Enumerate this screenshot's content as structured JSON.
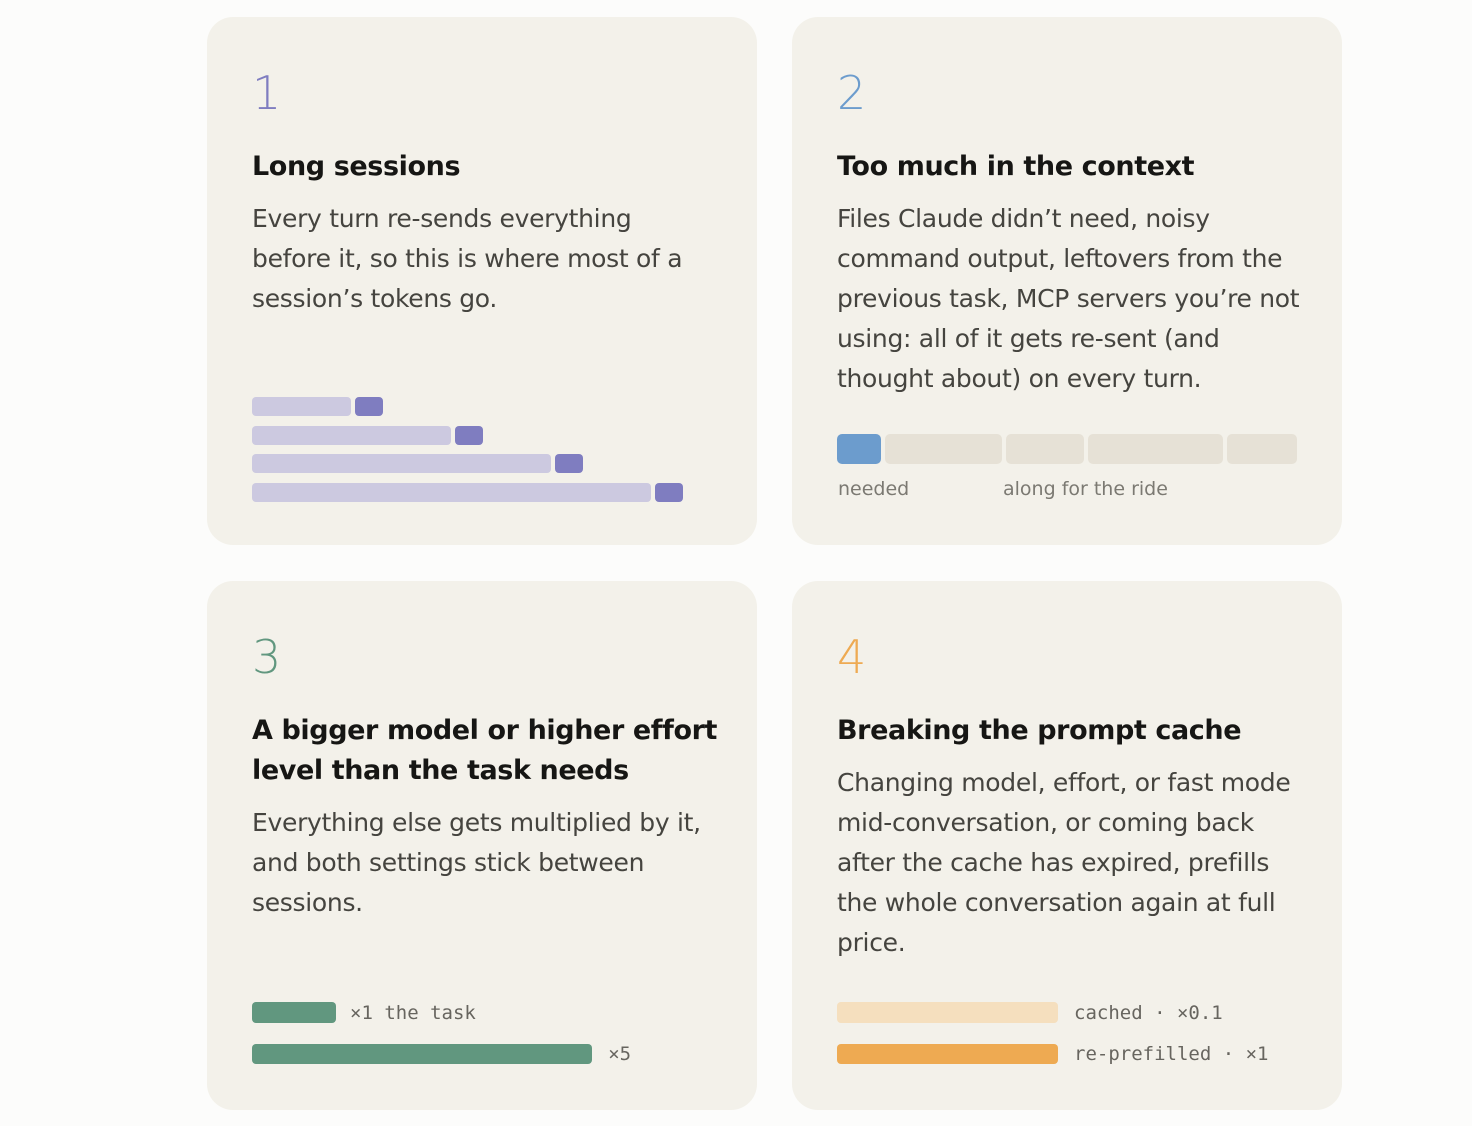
{
  "colors": {
    "card_bg": "#f3f1ea",
    "purple": "#7f7dc0",
    "purple_light": "#ccc9e0",
    "blue": "#6c9ccd",
    "beige": "#e6e1d6",
    "green": "#61977f",
    "orange": "#eeaa52",
    "orange_light": "#f5dfbe"
  },
  "cards": [
    {
      "number": "1",
      "title": "Long sessions",
      "description": "Every turn re-sends everything before it, so this is where most of a session’s tokens go.",
      "turns": [
        {
          "resent": 1,
          "new": 1
        },
        {
          "resent": 2,
          "new": 1
        },
        {
          "resent": 3,
          "new": 1
        },
        {
          "resent": 4,
          "new": 1
        }
      ]
    },
    {
      "number": "2",
      "title": "Too much in the context",
      "description": "Files Claude didn’t need, noisy command output, leftovers from the previous task, MCP servers you’re not using: all of it gets re-sent (and thought about) on every turn.",
      "segments": [
        {
          "role": "needed",
          "size": 1
        },
        {
          "role": "extra",
          "size": 2.7
        },
        {
          "role": "extra",
          "size": 1.8
        },
        {
          "role": "extra",
          "size": 3.1
        },
        {
          "role": "extra",
          "size": 1.6
        }
      ],
      "label_needed": "needed",
      "label_extra": "along for the ride"
    },
    {
      "number": "3",
      "title": "A bigger model or higher effort level than the task needs",
      "description": "Everything else gets multiplied by it, and both settings stick between sessions.",
      "bars": [
        {
          "multiplier": 1,
          "label": "×1 the task"
        },
        {
          "multiplier": 5,
          "label": "×5"
        }
      ]
    },
    {
      "number": "4",
      "title": "Breaking the prompt cache",
      "description": "Changing model, effort, or fast mode mid-conversation, or coming back after the cache has expired, prefills the whole conversation again at full price.",
      "bars": [
        {
          "label": "cached · ×0.1",
          "color": "orange_light"
        },
        {
          "label": "re-prefilled · ×1",
          "color": "orange"
        }
      ]
    }
  ]
}
